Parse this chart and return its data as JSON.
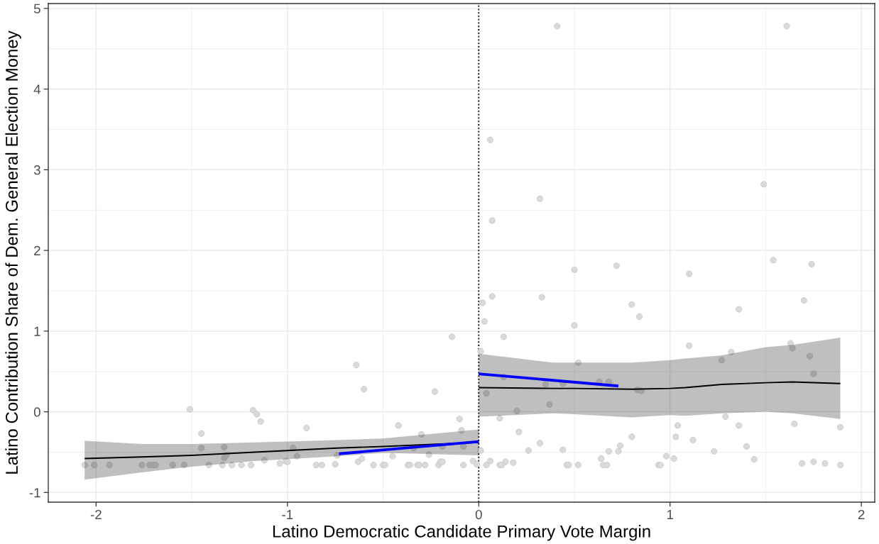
{
  "chart_data": {
    "type": "scatter",
    "xlabel": "Latino Democratic Candidate Primary Vote Margin",
    "ylabel": "Latino Contribution Share of Dem. General Election Money",
    "xlim": [
      -2.25,
      2.07
    ],
    "xticks": [
      -2,
      -1,
      0,
      1,
      2
    ],
    "ylim": [
      -1.12,
      5.06
    ],
    "yticks": [
      -1,
      0,
      1,
      2,
      3,
      4,
      5
    ],
    "grid": true,
    "ref_lines": [
      {
        "axis": "x",
        "value": 0,
        "color": "#000000",
        "line_style": "dotted"
      }
    ],
    "series": [
      {
        "color": "#dadada",
        "marker": "circle",
        "x": [
          -2.06,
          -2.01,
          -1.93,
          -1.76,
          -1.72,
          -1.7,
          -1.69,
          -1.6,
          -1.54,
          -1.51,
          -1.45,
          -1.45,
          -1.41,
          -1.34,
          -1.33,
          -1.33,
          -1.32,
          -1.29,
          -1.24,
          -1.19,
          -1.18,
          -1.16,
          -1.14,
          -1.12,
          -1.04,
          -1.01,
          -1.0,
          -0.97,
          -0.95,
          -0.9,
          -0.85,
          -0.82,
          -0.75,
          -0.74,
          -0.64,
          -0.63,
          -0.61,
          -0.6,
          -0.55,
          -0.5,
          -0.49,
          -0.45,
          -0.42,
          -0.37,
          -0.36,
          -0.34,
          -0.32,
          -0.31,
          -0.3,
          -0.28,
          -0.26,
          -0.23,
          -0.21,
          -0.2,
          -0.19,
          -0.19,
          -0.14,
          -0.1,
          -0.09,
          -0.08,
          -0.08,
          -0.03,
          -0.01,
          0.01,
          0.01,
          0.02,
          0.03,
          0.04,
          0.04,
          0.06,
          0.06,
          0.07,
          0.07,
          0.11,
          0.11,
          0.12,
          0.13,
          0.13,
          0.14,
          0.18,
          0.2,
          0.21,
          0.26,
          0.32,
          0.32,
          0.33,
          0.35,
          0.37,
          0.41,
          0.44,
          0.44,
          0.46,
          0.47,
          0.5,
          0.5,
          0.52,
          0.52,
          0.63,
          0.64,
          0.65,
          0.67,
          0.68,
          0.68,
          0.72,
          0.73,
          0.74,
          0.8,
          0.8,
          0.83,
          0.84,
          0.85,
          0.94,
          0.95,
          0.98,
          1.02,
          1.03,
          1.04,
          1.1,
          1.1,
          1.12,
          1.23,
          1.27,
          1.29,
          1.32,
          1.36,
          1.36,
          1.4,
          1.44,
          1.49,
          1.54,
          1.61,
          1.63,
          1.64,
          1.65,
          1.69,
          1.7,
          1.73,
          1.74,
          1.75,
          1.75,
          1.81,
          1.89,
          1.89
        ],
        "values": [
          -0.66,
          -0.66,
          -0.66,
          -0.66,
          -0.66,
          -0.66,
          -0.66,
          -0.66,
          -0.66,
          0.03,
          -0.27,
          -0.45,
          -0.66,
          -0.66,
          -0.44,
          -0.57,
          -0.54,
          -0.66,
          -0.66,
          -0.66,
          0.02,
          -0.03,
          -0.12,
          -0.6,
          -0.64,
          -0.61,
          -0.62,
          -0.45,
          -0.55,
          -0.2,
          -0.66,
          -0.66,
          -0.65,
          -0.54,
          0.58,
          -0.62,
          -0.58,
          0.28,
          -0.66,
          -0.66,
          -0.66,
          -0.55,
          -0.17,
          -0.66,
          -0.66,
          -0.45,
          -0.66,
          -0.66,
          -0.28,
          -0.66,
          -0.53,
          0.25,
          -0.66,
          -0.62,
          -0.62,
          -0.43,
          0.93,
          -0.09,
          -0.23,
          -0.43,
          -0.66,
          -0.61,
          -0.65,
          0.75,
          -0.48,
          1.35,
          1.12,
          0.23,
          -0.66,
          -0.61,
          3.37,
          1.43,
          2.37,
          -0.08,
          -0.66,
          -0.66,
          0.93,
          0.43,
          -0.62,
          -0.63,
          0.01,
          -0.25,
          -0.48,
          -0.39,
          2.64,
          1.42,
          0.34,
          0.09,
          4.78,
          -0.47,
          0.35,
          -0.66,
          -0.66,
          1.76,
          1.07,
          -0.66,
          0.61,
          0.37,
          -0.58,
          -0.66,
          -0.66,
          0.37,
          -0.49,
          1.81,
          -0.49,
          -0.42,
          -0.31,
          1.33,
          0.27,
          1.18,
          0.26,
          -0.66,
          -0.66,
          -0.55,
          -0.58,
          -0.31,
          -0.17,
          0.82,
          1.71,
          -0.35,
          -0.49,
          0.64,
          -0.06,
          0.74,
          1.27,
          -0.17,
          -0.43,
          -0.59,
          2.82,
          1.88,
          4.78,
          0.85,
          0.79,
          -0.15,
          -0.64,
          1.38,
          0.69,
          1.83,
          0.47,
          -0.62,
          -0.64,
          -0.19,
          -0.66
        ]
      },
      {
        "type": "line",
        "color": "#000000",
        "x": [
          -2.06,
          -1.76,
          -1.5,
          -1.17,
          -0.74,
          -0.5,
          0
        ],
        "values": [
          -0.58,
          -0.56,
          -0.54,
          -0.5,
          -0.45,
          -0.43,
          -0.38
        ],
        "lower": [
          -0.84,
          -0.75,
          -0.68,
          -0.61,
          -0.55,
          -0.51,
          -0.54
        ],
        "upper": [
          -0.36,
          -0.4,
          -0.4,
          -0.38,
          -0.35,
          -0.33,
          -0.22
        ]
      },
      {
        "type": "line",
        "color": "#000000",
        "x": [
          0,
          0.39,
          0.5,
          0.8,
          1.0,
          1.08,
          1.27,
          1.5,
          1.64,
          1.89
        ],
        "values": [
          0.3,
          0.29,
          0.29,
          0.28,
          0.29,
          0.3,
          0.34,
          0.36,
          0.37,
          0.35
        ],
        "lower": [
          -0.06,
          -0.02,
          -0.03,
          -0.07,
          -0.04,
          -0.05,
          -0.02,
          0,
          -0.02,
          -0.09
        ],
        "upper": [
          0.72,
          0.61,
          0.61,
          0.61,
          0.64,
          0.66,
          0.7,
          0.8,
          0.83,
          0.92
        ]
      },
      {
        "type": "line",
        "color": "#0000ff",
        "x": [
          -0.73,
          0
        ],
        "values": [
          -0.52,
          -0.37
        ]
      },
      {
        "type": "line",
        "color": "#0000ff",
        "x": [
          0,
          0.73
        ],
        "values": [
          0.47,
          0.32
        ]
      }
    ]
  }
}
